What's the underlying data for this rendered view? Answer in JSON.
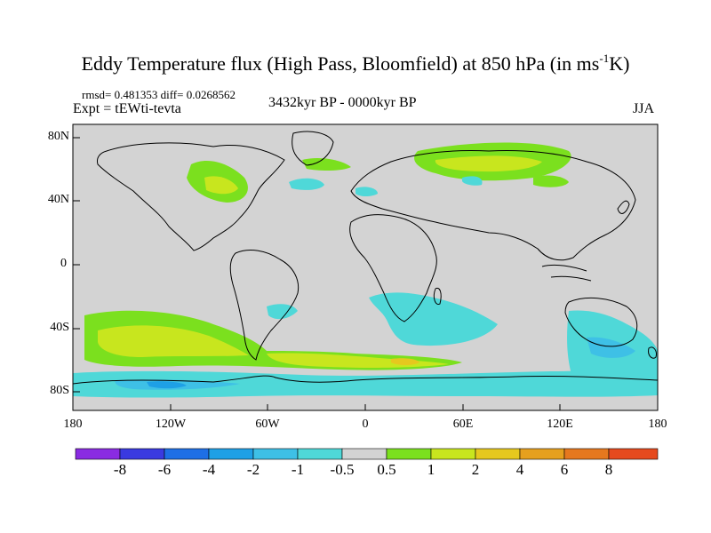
{
  "title": {
    "main": "Eddy Temperature flux (High Pass, Bloomfield) at 850 hPa (in ms",
    "sup": "-1",
    "tail": "K)"
  },
  "stats": "rmsd= 0.481353 diff= 0.0268562",
  "expt": "Expt = tEWti-tevta",
  "period": "3432kyr BP - 0000kyr BP",
  "season": "JJA",
  "y_axis": {
    "ticks": [
      "80N",
      "40N",
      "0",
      "40S",
      "80S"
    ]
  },
  "x_axis": {
    "ticks": [
      "180",
      "120W",
      "60W",
      "0",
      "60E",
      "120E",
      "180"
    ]
  },
  "colorbar": {
    "labels": [
      "-8",
      "-6",
      "-4",
      "-2",
      "-1",
      "-0.5",
      "0.5",
      "1",
      "2",
      "4",
      "6",
      "8"
    ],
    "colors": [
      "#8a2be2",
      "#3a3ae0",
      "#1e6fe6",
      "#1ea0e6",
      "#3ec0e6",
      "#4fd8d8",
      "#d3d3d3",
      "#7be01e",
      "#c8e61e",
      "#e6c81e",
      "#e6a01e",
      "#e6781e",
      "#e64a1e"
    ]
  },
  "colors": {
    "land_background": "#d3d3d3",
    "coast": "#000000"
  }
}
